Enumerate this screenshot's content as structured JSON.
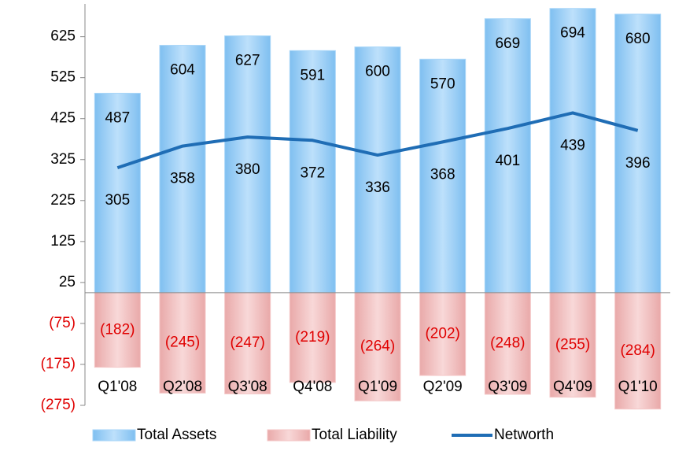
{
  "chart_data": {
    "type": "bar-line",
    "categories": [
      "Q1'08",
      "Q2'08",
      "Q3'08",
      "Q4'08",
      "Q1'09",
      "Q2'09",
      "Q3'09",
      "Q4'09",
      "Q1'10"
    ],
    "series": [
      {
        "name": "Total Assets",
        "type": "bar",
        "color": "#a9d6f8",
        "values": [
          487,
          604,
          627,
          591,
          600,
          570,
          669,
          694,
          680
        ]
      },
      {
        "name": "Total Liability",
        "type": "bar",
        "color": "#f4c7c7",
        "values": [
          -182,
          -245,
          -247,
          -219,
          -264,
          -202,
          -248,
          -255,
          -284
        ],
        "value_labels": [
          "(182)",
          "(245)",
          "(247)",
          "(219)",
          "(264)",
          "(202)",
          "(248)",
          "(255)",
          "(284)"
        ]
      },
      {
        "name": "Networth",
        "type": "line",
        "color": "#1f6db5",
        "values": [
          305,
          358,
          380,
          372,
          336,
          368,
          401,
          439,
          396
        ]
      }
    ],
    "ylim": [
      -275,
      705
    ],
    "yticks": [
      625,
      525,
      425,
      325,
      225,
      125,
      25,
      {
        "value": -75,
        "label": "(75)"
      },
      {
        "value": -175,
        "label": "(175)"
      },
      {
        "value": -275,
        "label": "(275)"
      }
    ],
    "legend": "bottom"
  }
}
